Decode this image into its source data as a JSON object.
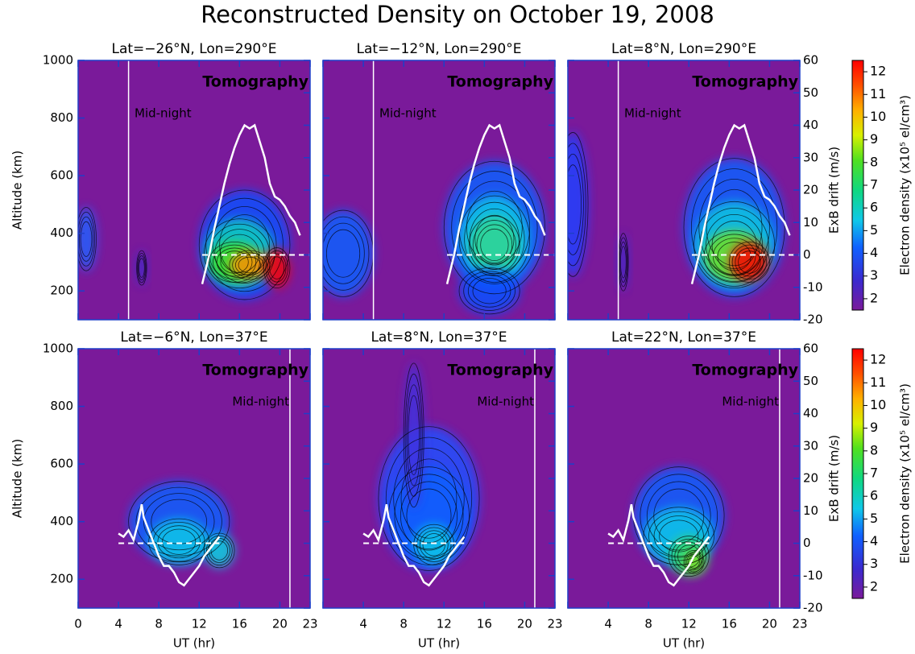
{
  "chart_data": {
    "type": "contour-panels",
    "title": "Reconstructed Density on October 19, 2008",
    "xlabel": "UT (hr)",
    "ylabel": "Altitude (km)",
    "y2label": "ExB drift (m/s)",
    "annotations": [
      "Tomography",
      "Mid-night"
    ],
    "xlim": [
      0,
      23
    ],
    "xticks": [
      0,
      4,
      8,
      12,
      16,
      20,
      23
    ],
    "ylim": [
      100,
      1000
    ],
    "yticks": [
      200,
      400,
      600,
      800,
      1000
    ],
    "y2lim": [
      -20,
      60
    ],
    "y2ticks": [
      -20,
      -10,
      0,
      10,
      20,
      30,
      40,
      50,
      60
    ],
    "drift_color": "#ffffff",
    "colorbar": {
      "label": "Electron density (x10⁵ el/cm³)",
      "clim": [
        1.5,
        12.5
      ],
      "ticks": [
        2,
        3,
        4,
        5,
        6,
        7,
        8,
        9,
        10,
        11,
        12
      ]
    },
    "rows": [
      {
        "panels": [
          "Lat=−26°N, Lon=290°E",
          "Lat=−12°N, Lon=290°E",
          "Lat=8°N, Lon=290°E"
        ],
        "midnight": 5,
        "hline": 0,
        "drift": {
          "x": [
            12.3,
            13,
            13.5,
            14,
            14.5,
            15,
            15.5,
            16,
            16.5,
            17,
            17.5,
            18,
            18.5,
            19,
            19.5,
            20,
            20.5,
            21,
            21.5,
            22
          ],
          "values": [
            -9,
            0,
            8,
            15,
            22,
            28,
            33,
            37,
            40,
            39,
            40,
            35,
            30,
            22,
            18,
            17,
            15,
            12,
            10,
            6
          ]
        }
      },
      {
        "panels": [
          "Lat=−6°N, Lon=37°E",
          "Lat=8°N, Lon=37°E",
          "Lat=22°N, Lon=37°E"
        ],
        "midnight": 21,
        "hline": 0,
        "drift": {
          "x": [
            4,
            4.5,
            5,
            5.5,
            6,
            6.3,
            6.5,
            7,
            7.5,
            8,
            8.5,
            9,
            9.5,
            10,
            10.5,
            11,
            11.5,
            12,
            12.5,
            13,
            14
          ],
          "values": [
            3,
            2,
            4,
            1,
            7,
            12,
            8,
            4,
            0,
            -4,
            -7,
            -7,
            -9,
            -12,
            -13,
            -11,
            -9,
            -7,
            -4,
            -2,
            2
          ]
        }
      }
    ]
  }
}
